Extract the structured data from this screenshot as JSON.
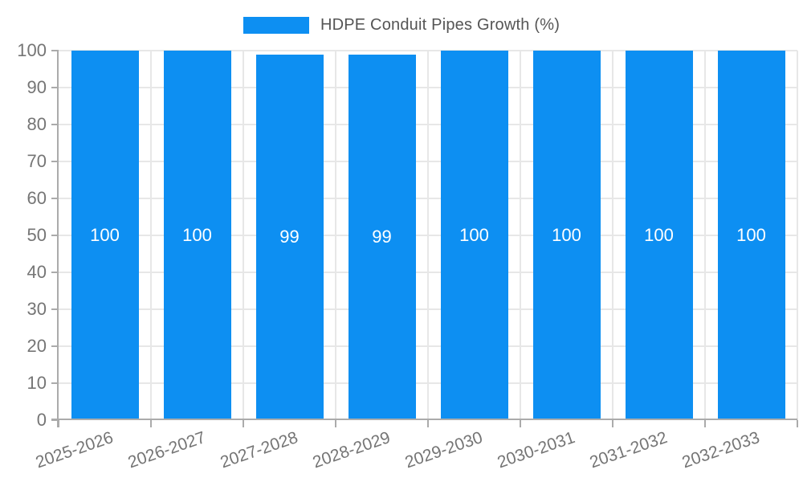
{
  "chart_data": {
    "type": "bar",
    "title": "HDPE Conduit Pipes Growth (%)",
    "categories": [
      "2025-2026",
      "2026-2027",
      "2027-2028",
      "2028-2029",
      "2029-2030",
      "2030-2031",
      "2031-2032",
      "2032-2033"
    ],
    "values": [
      100,
      100,
      99,
      99,
      100,
      100,
      100,
      100
    ],
    "bar_labels": [
      "100",
      "100",
      "99",
      "99",
      "100",
      "100",
      "100",
      "100"
    ],
    "xlabel": "",
    "ylabel": "",
    "ylim": [
      0,
      100
    ],
    "y_ticks": [
      0,
      10,
      20,
      30,
      40,
      50,
      60,
      70,
      80,
      90,
      100
    ],
    "grid": true,
    "legend_position": "top",
    "x_tick_rotation_deg": -19
  },
  "legend": {
    "label": "HDPE Conduit Pipes Growth (%)"
  },
  "colors": {
    "bar": "#0d8ff2",
    "grid": "#e7e7e7",
    "axis": "#ababab",
    "tick_label": "#757575",
    "bar_label": "#ffffff",
    "title": "#555555",
    "background": "#ffffff"
  }
}
